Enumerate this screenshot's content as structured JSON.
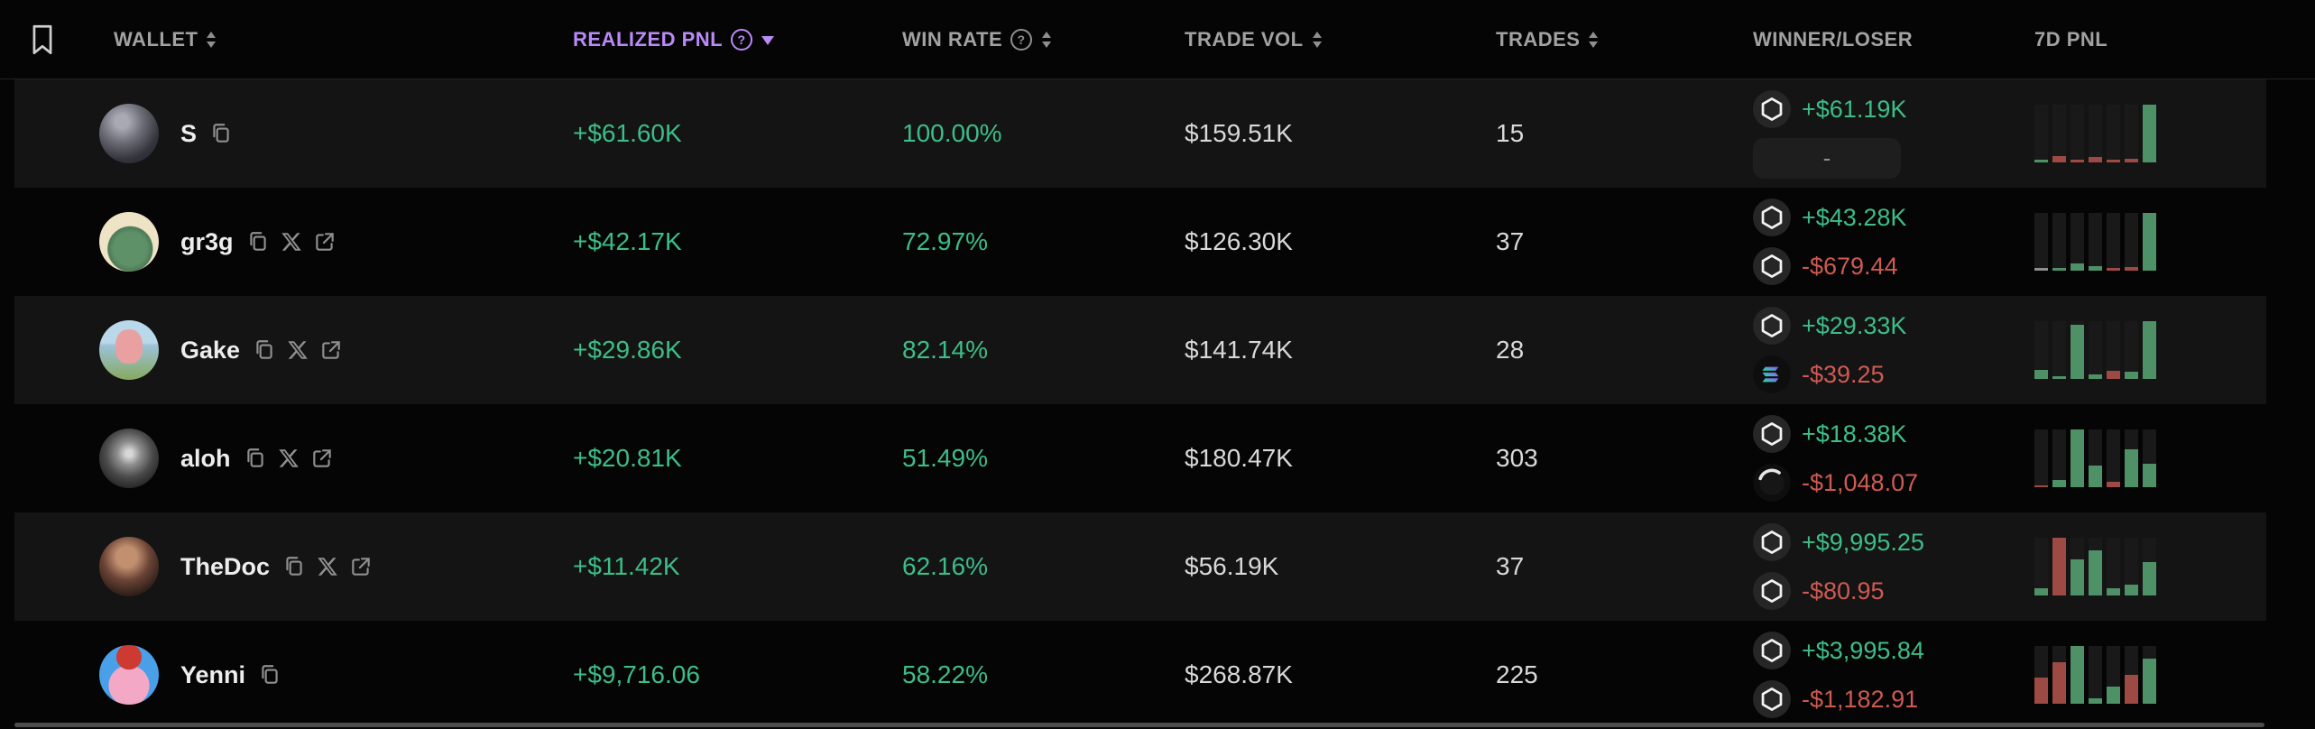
{
  "colors": {
    "text_green": "#3dbd88",
    "text_red": "#ce5a52",
    "accent_purple": "#b98bf7",
    "bar_green": "#4f9167",
    "bar_red": "#9d4a44",
    "bar_gray": "#8f8f8f"
  },
  "header": {
    "wallet": "WALLET",
    "realized_pnl": "REALIZED PNL",
    "win_rate": "WIN RATE",
    "trade_vol": "TRADE VOL",
    "trades": "TRADES",
    "winner_loser": "WINNER/LOSER",
    "pnl_7d": "7D PNL"
  },
  "rows": [
    {
      "name": "S",
      "realized_pnl": "+$61.60K",
      "win_rate": "100.00%",
      "trade_vol": "$159.51K",
      "trades": "15",
      "winner_amount": "+$61.19K",
      "loser_amount": "-",
      "chart": {
        "values": [
          4,
          11,
          4,
          10,
          4,
          6,
          100
        ],
        "colors": [
          "green",
          "red",
          "red",
          "red",
          "red",
          "red",
          "green"
        ]
      }
    },
    {
      "name": "gr3g",
      "realized_pnl": "+$42.17K",
      "win_rate": "72.97%",
      "trade_vol": "$126.30K",
      "trades": "37",
      "winner_amount": "+$43.28K",
      "loser_amount": "-$679.44",
      "chart": {
        "values": [
          5,
          5,
          12,
          8,
          4,
          7,
          100
        ],
        "colors": [
          "gray",
          "green",
          "green",
          "green",
          "red",
          "red",
          "green"
        ]
      }
    },
    {
      "name": "Gake",
      "realized_pnl": "+$29.86K",
      "win_rate": "82.14%",
      "trade_vol": "$141.74K",
      "trades": "28",
      "winner_amount": "+$29.33K",
      "loser_amount": "-$39.25",
      "chart": {
        "values": [
          15,
          4,
          93,
          8,
          14,
          12,
          100
        ],
        "colors": [
          "green",
          "green",
          "green",
          "green",
          "red",
          "green",
          "green"
        ]
      }
    },
    {
      "name": "aloh",
      "realized_pnl": "+$20.81K",
      "win_rate": "51.49%",
      "trade_vol": "$180.47K",
      "trades": "303",
      "winner_amount": "+$18.38K",
      "loser_amount": "-$1,048.07",
      "chart": {
        "values": [
          3,
          12,
          100,
          38,
          10,
          65,
          40
        ],
        "colors": [
          "red",
          "green",
          "green",
          "green",
          "red",
          "green",
          "green"
        ]
      }
    },
    {
      "name": "TheDoc",
      "realized_pnl": "+$11.42K",
      "win_rate": "62.16%",
      "trade_vol": "$56.19K",
      "trades": "37",
      "winner_amount": "+$9,995.25",
      "loser_amount": "-$80.95",
      "chart": {
        "values": [
          13,
          100,
          62,
          78,
          13,
          18,
          58
        ],
        "colors": [
          "green",
          "red",
          "green",
          "green",
          "green",
          "green",
          "green"
        ]
      }
    },
    {
      "name": "Yenni",
      "realized_pnl": "+$9,716.06",
      "win_rate": "58.22%",
      "trade_vol": "$268.87K",
      "trades": "225",
      "winner_amount": "+$3,995.84",
      "loser_amount": "-$1,182.91",
      "chart": {
        "values": [
          45,
          72,
          100,
          10,
          30,
          50,
          78
        ],
        "colors": [
          "red",
          "red",
          "green",
          "green",
          "green",
          "red",
          "green"
        ]
      }
    }
  ]
}
